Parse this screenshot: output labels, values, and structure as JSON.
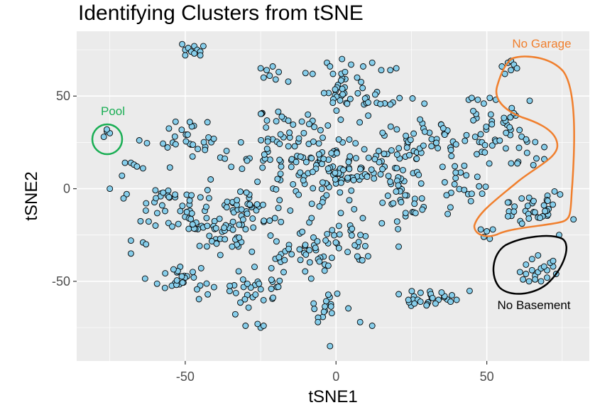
{
  "chart_data": {
    "type": "scatter",
    "title": "Identifying Clusters from tSNE",
    "xlabel": "tSNE1",
    "ylabel": "tSNE2",
    "xlim": [
      -86,
      84
    ],
    "ylim": [
      -93,
      85
    ],
    "x_ticks": [
      -50,
      0,
      50
    ],
    "y_ticks": [
      -50,
      0,
      50
    ],
    "grid": true,
    "point_fill": "#87CEEB",
    "point_stroke": "#000000",
    "panel_background": "#EBEBEB",
    "annotations": [
      {
        "label": "Pool",
        "color": "#1AAE54",
        "x": -77,
        "y": 30
      },
      {
        "label": "No Garage",
        "color": "#F07F2D",
        "x": 69,
        "y": 11
      },
      {
        "label": "No Basement",
        "color": "#000000",
        "x": 64,
        "y": -43
      }
    ],
    "clusters": [
      {
        "cx": -50,
        "cy": 28,
        "rx": 13,
        "ry": 10,
        "n": 28
      },
      {
        "cx": -55,
        "cy": -8,
        "rx": 12,
        "ry": 14,
        "n": 45
      },
      {
        "cx": -40,
        "cy": -22,
        "rx": 12,
        "ry": 12,
        "n": 45
      },
      {
        "cx": -50,
        "cy": -48,
        "rx": 10,
        "ry": 8,
        "n": 28
      },
      {
        "cx": -27,
        "cy": -55,
        "rx": 10,
        "ry": 9,
        "n": 30
      },
      {
        "cx": -28,
        "cy": -10,
        "rx": 10,
        "ry": 14,
        "n": 35
      },
      {
        "cx": -22,
        "cy": 16,
        "rx": 12,
        "ry": 14,
        "n": 35
      },
      {
        "cx": -6,
        "cy": 20,
        "rx": 12,
        "ry": 16,
        "n": 40
      },
      {
        "cx": 0,
        "cy": 8,
        "rx": 14,
        "ry": 18,
        "n": 70
      },
      {
        "cx": -12,
        "cy": -32,
        "rx": 12,
        "ry": 14,
        "n": 40
      },
      {
        "cx": 6,
        "cy": -28,
        "rx": 10,
        "ry": 14,
        "n": 30
      },
      {
        "cx": 2,
        "cy": 52,
        "rx": 12,
        "ry": 10,
        "n": 35
      },
      {
        "cx": 20,
        "cy": 20,
        "rx": 12,
        "ry": 16,
        "n": 45
      },
      {
        "cx": 33,
        "cy": 26,
        "rx": 10,
        "ry": 12,
        "n": 30
      },
      {
        "cx": 22,
        "cy": -6,
        "rx": 11,
        "ry": 14,
        "n": 35
      },
      {
        "cx": 30,
        "cy": -58,
        "rx": 9,
        "ry": 5,
        "n": 18
      },
      {
        "cx": -3,
        "cy": -63,
        "rx": 7,
        "ry": 6,
        "n": 15
      },
      {
        "cx": 55,
        "cy": 28,
        "rx": 12,
        "ry": 14,
        "n": 50
      },
      {
        "cx": 66,
        "cy": -10,
        "rx": 10,
        "ry": 10,
        "n": 35
      },
      {
        "cx": 43,
        "cy": 0,
        "rx": 7,
        "ry": 10,
        "n": 20
      },
      {
        "cx": -19,
        "cy": 38,
        "rx": 8,
        "ry": 5,
        "n": 12
      },
      {
        "cx": 16,
        "cy": 48,
        "rx": 6,
        "ry": 5,
        "n": 10
      }
    ],
    "groups": [
      {
        "x": [
          -51,
          -50,
          -49,
          -48,
          -47,
          -46,
          -45,
          -44,
          -50,
          -47,
          -45
        ],
        "y": [
          78,
          75,
          76,
          74,
          77,
          75,
          74,
          77,
          72,
          73,
          72
        ]
      },
      {
        "x": [
          -25,
          -23,
          -21,
          -19,
          -24,
          -22,
          -20
        ],
        "y": [
          65,
          64,
          66,
          63,
          60,
          61,
          59
        ]
      },
      {
        "x": [
          -3,
          -2,
          2,
          5,
          9,
          12,
          15,
          18,
          20,
          -1,
          3,
          7
        ],
        "y": [
          68,
          66,
          70,
          67,
          66,
          68,
          64,
          64,
          65,
          62,
          63,
          60
        ]
      },
      {
        "x": [
          -77,
          -76,
          -75,
          -76
        ],
        "y": [
          28,
          31,
          30,
          32
        ]
      },
      {
        "x": [
          -75
        ],
        "y": [
          0
        ]
      },
      {
        "x": [
          -70,
          -68,
          -67,
          -66,
          -64
        ],
        "y": [
          14,
          14,
          13,
          12,
          11
        ]
      },
      {
        "x": [
          -68,
          -64,
          -68,
          -63
        ],
        "y": [
          -28,
          -29,
          -35,
          -30
        ]
      },
      {
        "x": [
          -2
        ],
        "y": [
          -85
        ]
      },
      {
        "x": [
          55,
          57,
          58,
          59,
          60,
          56,
          58
        ],
        "y": [
          66,
          68,
          69,
          67,
          65,
          62,
          64
        ]
      },
      {
        "x": [
          44,
          45,
          47,
          49,
          51,
          53
        ],
        "y": [
          48,
          49,
          48,
          46,
          49,
          48
        ]
      },
      {
        "x": [
          61,
          63,
          65,
          66,
          67,
          68,
          70,
          72,
          73,
          62,
          64,
          66,
          68,
          70,
          63,
          65,
          67,
          69,
          71,
          72
        ],
        "y": [
          -45,
          -46,
          -44,
          -47,
          -45,
          -43,
          -44,
          -42,
          -46,
          -49,
          -50,
          -49,
          -50,
          -48,
          -41,
          -38,
          -36,
          -42,
          -40,
          -39
        ]
      },
      {
        "x": [
          48,
          50,
          52,
          49,
          51
        ],
        "y": [
          -22,
          -23,
          -22,
          -26,
          -27
        ]
      },
      {
        "x": [
          74
        ],
        "y": [
          -25
        ]
      },
      {
        "x": [
          24,
          26,
          28,
          30,
          32,
          34,
          36,
          38,
          40,
          35,
          33
        ],
        "y": [
          -60,
          -62,
          -61,
          -63,
          -59,
          -60,
          -58,
          -61,
          -60,
          -56,
          -62
        ]
      },
      {
        "x": [
          -30,
          -25,
          -26,
          -24,
          -6,
          8,
          12
        ],
        "y": [
          -74,
          -75,
          -73,
          -74,
          -72,
          -72,
          -74
        ]
      }
    ]
  }
}
